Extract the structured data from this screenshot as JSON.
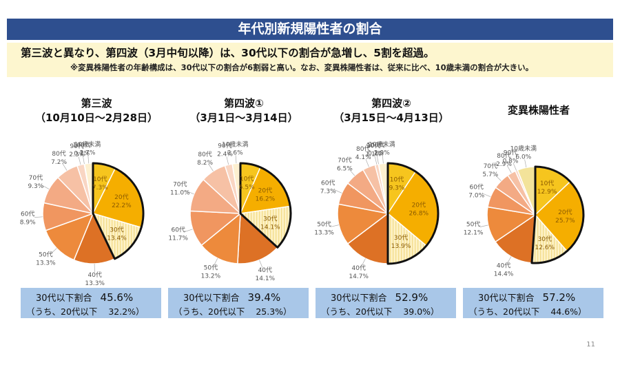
{
  "title": "年代別新規陽性者の割合",
  "subtitle": "第三波と異なり、第四波（3月中旬以降）は、30代以下の割合が急増し、5割を超過。",
  "note": "※変異株陽性者の年齢構成は、30代以下の割合が6割弱と高い。なお、変異株陽性者は、従来に比べ、10歳未満の割合が大きい。",
  "page_number": "11",
  "chart_data": [
    {
      "type": "pie",
      "title": "第三波",
      "subtitle": "（10月10日～2月28日）",
      "summary_label": "30代以下割合",
      "summary_value": "45.6%",
      "summary_sub_label": "（うち、20代以下",
      "summary_sub_value": "32.2%）",
      "slices": [
        {
          "name": "10代",
          "value": 7.3,
          "label": "7.3%",
          "color": "#f6c51e",
          "highlight": true,
          "inside": true
        },
        {
          "name": "20代",
          "value": 22.2,
          "label": "22.2%",
          "color": "#f5ae00",
          "highlight": true,
          "inside": true
        },
        {
          "name": "30代",
          "value": 13.4,
          "label": "13.4%",
          "color": "#fdf2c7",
          "highlight": true,
          "inside": true
        },
        {
          "name": "40代",
          "value": 13.3,
          "label": "13.3%",
          "color": "#dd7125"
        },
        {
          "name": "50代",
          "value": 13.3,
          "label": "13.3%",
          "color": "#ed8a3c"
        },
        {
          "name": "60代",
          "value": 8.9,
          "label": "8.9%",
          "color": "#f09660"
        },
        {
          "name": "70代",
          "value": 9.3,
          "label": "9.3%",
          "color": "#f3aa84"
        },
        {
          "name": "80代",
          "value": 7.2,
          "label": "7.2%",
          "color": "#f6c1a5"
        },
        {
          "name": "90代",
          "value": 2.3,
          "label": "2.3%",
          "color": "#f9d6c3"
        },
        {
          "name": "100代",
          "value": 0.1,
          "label": "0.1%",
          "color": "#fbe6da"
        },
        {
          "name": "10歳未満",
          "value": 2.7,
          "label": "2.7%",
          "color": "#fdf0d0"
        }
      ]
    },
    {
      "type": "pie",
      "title": "第四波①",
      "subtitle": "（3月1日～3月14日）",
      "summary_label": "30代以下割合",
      "summary_value": "39.4%",
      "summary_sub_label": "（うち、20代以下",
      "summary_sub_value": "25.3%）",
      "slices": [
        {
          "name": "10代",
          "value": 6.5,
          "label": "6.5%",
          "color": "#f6c51e",
          "highlight": true,
          "inside": true
        },
        {
          "name": "20代",
          "value": 16.2,
          "label": "16.2%",
          "color": "#f5ae00",
          "highlight": true,
          "inside": true
        },
        {
          "name": "30代",
          "value": 14.1,
          "label": "14.1%",
          "color": "#fdf2c7",
          "highlight": true,
          "inside": true
        },
        {
          "name": "40代",
          "value": 14.1,
          "label": "14.1%",
          "color": "#dd7125"
        },
        {
          "name": "50代",
          "value": 13.2,
          "label": "13.2%",
          "color": "#ed8a3c"
        },
        {
          "name": "60代",
          "value": 11.7,
          "label": "11.7%",
          "color": "#f09660"
        },
        {
          "name": "70代",
          "value": 11.0,
          "label": "11.0%",
          "color": "#f3aa84"
        },
        {
          "name": "80代",
          "value": 8.2,
          "label": "8.2%",
          "color": "#f6c1a5"
        },
        {
          "name": "90代",
          "value": 2.4,
          "label": "2.4%",
          "color": "#f9d6c3"
        },
        {
          "name": "10歳未満",
          "value": 2.6,
          "label": "2.6%",
          "color": "#fdf0d0"
        }
      ]
    },
    {
      "type": "pie",
      "title": "第四波②",
      "subtitle": "（3月15日～4月13日）",
      "summary_label": "30代以下割合",
      "summary_value": "52.9%",
      "summary_sub_label": "（うち、20代以下",
      "summary_sub_value": "39.0%）",
      "slices": [
        {
          "name": "10代",
          "value": 9.3,
          "label": "9.3%",
          "color": "#f6c51e",
          "highlight": true,
          "inside": true
        },
        {
          "name": "20代",
          "value": 26.8,
          "label": "26.8%",
          "color": "#f5ae00",
          "highlight": true,
          "inside": true
        },
        {
          "name": "30代",
          "value": 13.9,
          "label": "13.9%",
          "color": "#fdf2c7",
          "highlight": true,
          "inside": true
        },
        {
          "name": "40代",
          "value": 14.7,
          "label": "14.7%",
          "color": "#dd7125"
        },
        {
          "name": "50代",
          "value": 13.3,
          "label": "13.3%",
          "color": "#ed8a3c"
        },
        {
          "name": "60代",
          "value": 7.3,
          "label": "7.3%",
          "color": "#f09660"
        },
        {
          "name": "70代",
          "value": 6.5,
          "label": "6.5%",
          "color": "#f3aa84"
        },
        {
          "name": "80代",
          "value": 4.1,
          "label": "4.1%",
          "color": "#f6c1a5"
        },
        {
          "name": "90代",
          "value": 1.1,
          "label": "1.1%",
          "color": "#f9d6c3"
        },
        {
          "name": "100代",
          "value": 0.1,
          "label": "0.1%",
          "color": "#fbe6da"
        },
        {
          "name": "10歳未満",
          "value": 2.9,
          "label": "2.9%",
          "color": "#fdf0d0"
        }
      ]
    },
    {
      "type": "pie",
      "title": "変異株陽性者",
      "subtitle": "",
      "summary_label": "30代以下割合",
      "summary_value": "57.2%",
      "summary_sub_label": "（うち、20代以下",
      "summary_sub_value": "44.6%）",
      "slices": [
        {
          "name": "10代",
          "value": 12.9,
          "label": "12.9%",
          "color": "#f6c51e",
          "highlight": true,
          "inside": true
        },
        {
          "name": "20代",
          "value": 25.7,
          "label": "25.7%",
          "color": "#f5ae00",
          "highlight": true,
          "inside": true
        },
        {
          "name": "30代",
          "value": 12.6,
          "label": "12.6%",
          "color": "#fdf2c7",
          "highlight": true,
          "inside": true
        },
        {
          "name": "40代",
          "value": 14.4,
          "label": "14.4%",
          "color": "#dd7125"
        },
        {
          "name": "50代",
          "value": 12.1,
          "label": "12.1%",
          "color": "#ed8a3c"
        },
        {
          "name": "60代",
          "value": 7.0,
          "label": "7.0%",
          "color": "#f09660"
        },
        {
          "name": "70代",
          "value": 5.7,
          "label": "5.7%",
          "color": "#f3aa84"
        },
        {
          "name": "80代",
          "value": 2.9,
          "label": "2.9%",
          "color": "#f6c1a5"
        },
        {
          "name": "90代",
          "value": 0.8,
          "label": "0.8%",
          "color": "#f9d6c3"
        },
        {
          "name": "10歳未満",
          "value": 6.0,
          "label": "6.0%",
          "color": "#f3e39a"
        }
      ]
    }
  ]
}
